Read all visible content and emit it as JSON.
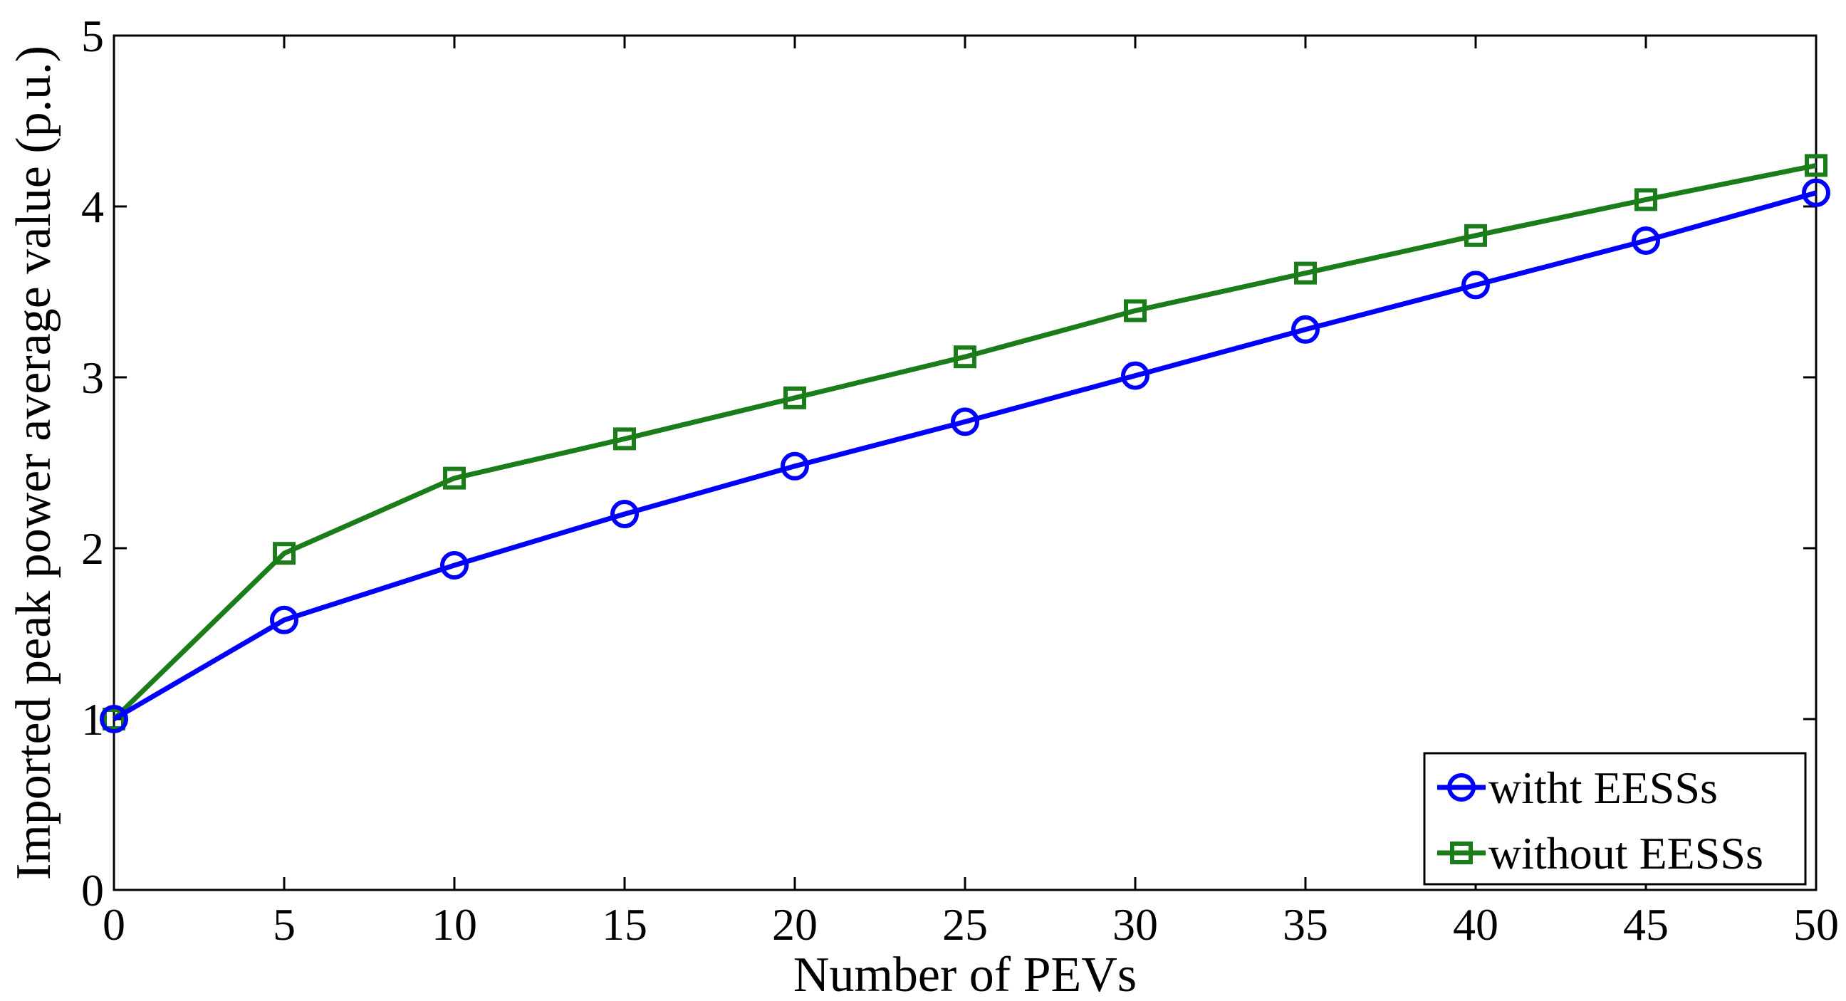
{
  "chart_data": {
    "type": "line",
    "title": "",
    "xlabel": "Number of PEVs",
    "ylabel": "Imported peak power average value (p.u.)",
    "x": [
      0,
      5,
      10,
      15,
      20,
      25,
      30,
      35,
      40,
      45,
      50
    ],
    "xlim": [
      0,
      50
    ],
    "ylim": [
      0,
      5
    ],
    "xticks": [
      0,
      5,
      10,
      15,
      20,
      25,
      30,
      35,
      40,
      45,
      50
    ],
    "yticks": [
      0,
      1,
      2,
      3,
      4,
      5
    ],
    "grid": false,
    "legend_position": "bottom-right",
    "series": [
      {
        "name": "witht EESSs",
        "color": "#0000ff",
        "marker": "circle",
        "values": [
          1.0,
          1.58,
          1.9,
          2.2,
          2.48,
          2.74,
          3.01,
          3.28,
          3.54,
          3.8,
          4.08
        ]
      },
      {
        "name": "without EESSs",
        "color": "#1a7d1a",
        "marker": "square",
        "values": [
          1.0,
          1.97,
          2.41,
          2.64,
          2.88,
          3.12,
          3.39,
          3.61,
          3.83,
          4.04,
          4.24
        ]
      }
    ]
  }
}
